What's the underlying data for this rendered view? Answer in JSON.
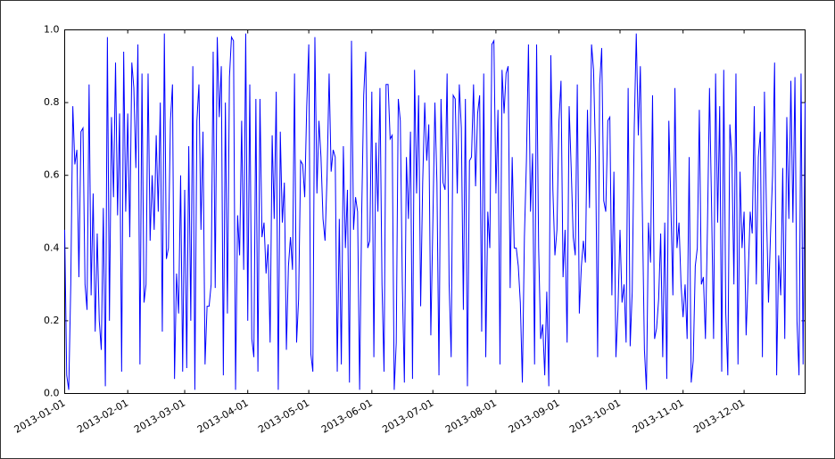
{
  "chart_data": {
    "type": "line",
    "x": [
      "2013-01-01",
      "2013-01-02",
      "2013-01-03",
      "2013-01-04",
      "2013-01-05",
      "2013-01-06",
      "2013-01-07",
      "2013-01-08",
      "2013-01-09",
      "2013-01-10",
      "2013-01-11",
      "2013-01-12",
      "2013-01-13",
      "2013-01-14",
      "2013-01-15",
      "2013-01-16",
      "2013-01-17",
      "2013-01-18",
      "2013-01-19",
      "2013-01-20",
      "2013-01-21",
      "2013-01-22",
      "2013-01-23",
      "2013-01-24",
      "2013-01-25",
      "2013-01-26",
      "2013-01-27",
      "2013-01-28",
      "2013-01-29",
      "2013-01-30",
      "2013-01-31",
      "2013-02-01",
      "2013-02-02",
      "2013-02-03",
      "2013-02-04",
      "2013-02-05",
      "2013-02-06",
      "2013-02-07",
      "2013-02-08",
      "2013-02-09",
      "2013-02-10",
      "2013-02-11",
      "2013-02-12",
      "2013-02-13",
      "2013-02-14",
      "2013-02-15",
      "2013-02-16",
      "2013-02-17",
      "2013-02-18",
      "2013-02-19",
      "2013-02-20",
      "2013-02-21",
      "2013-02-22",
      "2013-02-23",
      "2013-02-24",
      "2013-02-25",
      "2013-02-26",
      "2013-02-27",
      "2013-02-28",
      "2013-03-01",
      "2013-03-02",
      "2013-03-03",
      "2013-03-04",
      "2013-03-05",
      "2013-03-06",
      "2013-03-07",
      "2013-03-08",
      "2013-03-09",
      "2013-03-10",
      "2013-03-11",
      "2013-03-12",
      "2013-03-13",
      "2013-03-14",
      "2013-03-15",
      "2013-03-16",
      "2013-03-17",
      "2013-03-18",
      "2013-03-19",
      "2013-03-20",
      "2013-03-21",
      "2013-03-22",
      "2013-03-23",
      "2013-03-24",
      "2013-03-25",
      "2013-03-26",
      "2013-03-27",
      "2013-03-28",
      "2013-03-29",
      "2013-03-30",
      "2013-03-31",
      "2013-04-01",
      "2013-04-02",
      "2013-04-03",
      "2013-04-04",
      "2013-04-05",
      "2013-04-06",
      "2013-04-07",
      "2013-04-08",
      "2013-04-09",
      "2013-04-10",
      "2013-04-11",
      "2013-04-12",
      "2013-04-13",
      "2013-04-14",
      "2013-04-15",
      "2013-04-16",
      "2013-04-17",
      "2013-04-18",
      "2013-04-19",
      "2013-04-20",
      "2013-04-21",
      "2013-04-22",
      "2013-04-23",
      "2013-04-24",
      "2013-04-25",
      "2013-04-26",
      "2013-04-27",
      "2013-04-28",
      "2013-04-29",
      "2013-04-30",
      "2013-05-01",
      "2013-05-02",
      "2013-05-03",
      "2013-05-04",
      "2013-05-05",
      "2013-05-06",
      "2013-05-07",
      "2013-05-08",
      "2013-05-09",
      "2013-05-10",
      "2013-05-11",
      "2013-05-12",
      "2013-05-13",
      "2013-05-14",
      "2013-05-15",
      "2013-05-16",
      "2013-05-17",
      "2013-05-18",
      "2013-05-19",
      "2013-05-20",
      "2013-05-21",
      "2013-05-22",
      "2013-05-23",
      "2013-05-24",
      "2013-05-25",
      "2013-05-26",
      "2013-05-27",
      "2013-05-28",
      "2013-05-29",
      "2013-05-30",
      "2013-05-31",
      "2013-06-01",
      "2013-06-02",
      "2013-06-03",
      "2013-06-04",
      "2013-06-05",
      "2013-06-06",
      "2013-06-07",
      "2013-06-08",
      "2013-06-09",
      "2013-06-10",
      "2013-06-11",
      "2013-06-12",
      "2013-06-13",
      "2013-06-14",
      "2013-06-15",
      "2013-06-16",
      "2013-06-17",
      "2013-06-18",
      "2013-06-19",
      "2013-06-20",
      "2013-06-21",
      "2013-06-22",
      "2013-06-23",
      "2013-06-24",
      "2013-06-25",
      "2013-06-26",
      "2013-06-27",
      "2013-06-28",
      "2013-06-29",
      "2013-06-30",
      "2013-07-01",
      "2013-07-02",
      "2013-07-03",
      "2013-07-04",
      "2013-07-05",
      "2013-07-06",
      "2013-07-07",
      "2013-07-08",
      "2013-07-09",
      "2013-07-10",
      "2013-07-11",
      "2013-07-12",
      "2013-07-13",
      "2013-07-14",
      "2013-07-15",
      "2013-07-16",
      "2013-07-17",
      "2013-07-18",
      "2013-07-19",
      "2013-07-20",
      "2013-07-21",
      "2013-07-22",
      "2013-07-23",
      "2013-07-24",
      "2013-07-25",
      "2013-07-26",
      "2013-07-27",
      "2013-07-28",
      "2013-07-29",
      "2013-07-30",
      "2013-07-31",
      "2013-08-01",
      "2013-08-02",
      "2013-08-03",
      "2013-08-04",
      "2013-08-05",
      "2013-08-06",
      "2013-08-07",
      "2013-08-08",
      "2013-08-09",
      "2013-08-10",
      "2013-08-11",
      "2013-08-12",
      "2013-08-13",
      "2013-08-14",
      "2013-08-15",
      "2013-08-16",
      "2013-08-17",
      "2013-08-18",
      "2013-08-19",
      "2013-08-20",
      "2013-08-21",
      "2013-08-22",
      "2013-08-23",
      "2013-08-24",
      "2013-08-25",
      "2013-08-26",
      "2013-08-27",
      "2013-08-28",
      "2013-08-29",
      "2013-08-30",
      "2013-08-31",
      "2013-09-01",
      "2013-09-02",
      "2013-09-03",
      "2013-09-04",
      "2013-09-05",
      "2013-09-06",
      "2013-09-07",
      "2013-09-08",
      "2013-09-09",
      "2013-09-10",
      "2013-09-11",
      "2013-09-12",
      "2013-09-13",
      "2013-09-14",
      "2013-09-15",
      "2013-09-16",
      "2013-09-17",
      "2013-09-18",
      "2013-09-19",
      "2013-09-20",
      "2013-09-21",
      "2013-09-22",
      "2013-09-23",
      "2013-09-24",
      "2013-09-25",
      "2013-09-26",
      "2013-09-27",
      "2013-09-28",
      "2013-09-29",
      "2013-09-30",
      "2013-10-01",
      "2013-10-02",
      "2013-10-03",
      "2013-10-04",
      "2013-10-05",
      "2013-10-06",
      "2013-10-07",
      "2013-10-08",
      "2013-10-09",
      "2013-10-10",
      "2013-10-11",
      "2013-10-12",
      "2013-10-13",
      "2013-10-14",
      "2013-10-15",
      "2013-10-16",
      "2013-10-17",
      "2013-10-18",
      "2013-10-19",
      "2013-10-20",
      "2013-10-21",
      "2013-10-22",
      "2013-10-23",
      "2013-10-24",
      "2013-10-25",
      "2013-10-26",
      "2013-10-27",
      "2013-10-28",
      "2013-10-29",
      "2013-10-30",
      "2013-10-31",
      "2013-11-01",
      "2013-11-02",
      "2013-11-03",
      "2013-11-04",
      "2013-11-05",
      "2013-11-06",
      "2013-11-07",
      "2013-11-08",
      "2013-11-09",
      "2013-11-10",
      "2013-11-11",
      "2013-11-12",
      "2013-11-13",
      "2013-11-14",
      "2013-11-15",
      "2013-11-16",
      "2013-11-17",
      "2013-11-18",
      "2013-11-19",
      "2013-11-20",
      "2013-11-21",
      "2013-11-22",
      "2013-11-23",
      "2013-11-24",
      "2013-11-25",
      "2013-11-26",
      "2013-11-27",
      "2013-11-28",
      "2013-11-29",
      "2013-11-30",
      "2013-12-01",
      "2013-12-02",
      "2013-12-03",
      "2013-12-04",
      "2013-12-05",
      "2013-12-06",
      "2013-12-07",
      "2013-12-08",
      "2013-12-09",
      "2013-12-10",
      "2013-12-11",
      "2013-12-12",
      "2013-12-13",
      "2013-12-14",
      "2013-12-15",
      "2013-12-16",
      "2013-12-17",
      "2013-12-18",
      "2013-12-19",
      "2013-12-20",
      "2013-12-21",
      "2013-12-22",
      "2013-12-23",
      "2013-12-24",
      "2013-12-25",
      "2013-12-26",
      "2013-12-27",
      "2013-12-28",
      "2013-12-29",
      "2013-12-30",
      "2013-12-31"
    ],
    "values": [
      0.45,
      0.05,
      0.01,
      0.3,
      0.79,
      0.63,
      0.67,
      0.32,
      0.72,
      0.73,
      0.3,
      0.23,
      0.85,
      0.27,
      0.55,
      0.17,
      0.44,
      0.2,
      0.12,
      0.51,
      0.02,
      0.98,
      0.2,
      0.76,
      0.54,
      0.91,
      0.49,
      0.77,
      0.06,
      0.94,
      0.5,
      0.77,
      0.43,
      0.91,
      0.84,
      0.62,
      0.96,
      0.08,
      0.88,
      0.25,
      0.3,
      0.88,
      0.42,
      0.6,
      0.45,
      0.71,
      0.5,
      0.8,
      0.17,
      0.99,
      0.37,
      0.4,
      0.75,
      0.85,
      0.04,
      0.33,
      0.22,
      0.6,
      0.06,
      0.56,
      0.07,
      0.68,
      0.2,
      0.9,
      0.01,
      0.75,
      0.85,
      0.45,
      0.72,
      0.08,
      0.24,
      0.24,
      0.3,
      0.94,
      0.29,
      0.98,
      0.76,
      0.9,
      0.05,
      0.8,
      0.22,
      0.87,
      0.98,
      0.97,
      0.01,
      0.49,
      0.38,
      0.75,
      0.34,
      0.99,
      0.2,
      0.85,
      0.15,
      0.1,
      0.81,
      0.06,
      0.81,
      0.43,
      0.47,
      0.33,
      0.41,
      0.14,
      0.71,
      0.48,
      0.83,
      0.01,
      0.72,
      0.47,
      0.58,
      0.12,
      0.35,
      0.43,
      0.34,
      0.88,
      0.14,
      0.26,
      0.64,
      0.63,
      0.54,
      0.79,
      0.96,
      0.11,
      0.06,
      0.98,
      0.55,
      0.75,
      0.65,
      0.48,
      0.42,
      0.6,
      0.88,
      0.61,
      0.67,
      0.65,
      0.06,
      0.48,
      0.08,
      0.68,
      0.4,
      0.56,
      0.03,
      0.97,
      0.45,
      0.54,
      0.5,
      0.01,
      0.49,
      0.82,
      0.94,
      0.4,
      0.42,
      0.83,
      0.1,
      0.69,
      0.5,
      0.84,
      0.3,
      0.06,
      0.85,
      0.85,
      0.7,
      0.71,
      0.01,
      0.14,
      0.81,
      0.75,
      0.3,
      0.03,
      0.65,
      0.48,
      0.72,
      0.04,
      0.89,
      0.55,
      0.82,
      0.24,
      0.58,
      0.8,
      0.64,
      0.74,
      0.16,
      0.47,
      0.8,
      0.58,
      0.05,
      0.81,
      0.58,
      0.56,
      0.88,
      0.3,
      0.1,
      0.82,
      0.81,
      0.55,
      0.85,
      0.73,
      0.23,
      0.81,
      0.02,
      0.64,
      0.65,
      0.85,
      0.57,
      0.77,
      0.82,
      0.17,
      0.88,
      0.1,
      0.5,
      0.4,
      0.96,
      0.97,
      0.55,
      0.78,
      0.08,
      0.89,
      0.77,
      0.88,
      0.9,
      0.29,
      0.65,
      0.4,
      0.4,
      0.35,
      0.25,
      0.03,
      0.43,
      0.64,
      0.96,
      0.5,
      0.66,
      0.08,
      0.96,
      0.4,
      0.15,
      0.19,
      0.05,
      0.28,
      0.02,
      0.93,
      0.56,
      0.38,
      0.45,
      0.75,
      0.86,
      0.32,
      0.45,
      0.14,
      0.79,
      0.62,
      0.43,
      0.38,
      0.85,
      0.22,
      0.35,
      0.42,
      0.36,
      0.78,
      0.51,
      0.96,
      0.89,
      0.65,
      0.1,
      0.85,
      0.95,
      0.53,
      0.5,
      0.75,
      0.76,
      0.27,
      0.61,
      0.1,
      0.23,
      0.45,
      0.25,
      0.3,
      0.14,
      0.84,
      0.13,
      0.28,
      0.73,
      0.99,
      0.71,
      0.9,
      0.5,
      0.12,
      0.01,
      0.47,
      0.36,
      0.82,
      0.15,
      0.18,
      0.26,
      0.44,
      0.1,
      0.47,
      0.04,
      0.75,
      0.52,
      0.27,
      0.84,
      0.4,
      0.47,
      0.3,
      0.21,
      0.3,
      0.15,
      0.65,
      0.03,
      0.09,
      0.35,
      0.4,
      0.78,
      0.3,
      0.32,
      0.15,
      0.46,
      0.84,
      0.52,
      0.15,
      0.88,
      0.47,
      0.79,
      0.06,
      0.89,
      0.22,
      0.05,
      0.74,
      0.65,
      0.3,
      0.88,
      0.08,
      0.61,
      0.4,
      0.5,
      0.16,
      0.32,
      0.5,
      0.44,
      0.79,
      0.3,
      0.65,
      0.72,
      0.1,
      0.83,
      0.5,
      0.25,
      0.44,
      0.6,
      0.91,
      0.05,
      0.38,
      0.27,
      0.62,
      0.15,
      0.76,
      0.48,
      0.86,
      0.47,
      0.87,
      0.2,
      0.05,
      0.88,
      0.08,
      0.8
    ],
    "color": "#0000ff",
    "xlim": [
      "2013-01-01",
      "2013-12-31"
    ],
    "xticks": [
      "2013-01-01",
      "2013-02-01",
      "2013-03-01",
      "2013-04-01",
      "2013-05-01",
      "2013-06-01",
      "2013-07-01",
      "2013-08-01",
      "2013-09-01",
      "2013-10-01",
      "2013-11-01",
      "2013-12-01"
    ],
    "ylim": [
      0,
      1
    ],
    "yticks": [
      {
        "value": 0,
        "label": "0.0"
      },
      0.2,
      0.4,
      0.6,
      0.8,
      {
        "value": 1,
        "label": "1.0"
      }
    ]
  }
}
